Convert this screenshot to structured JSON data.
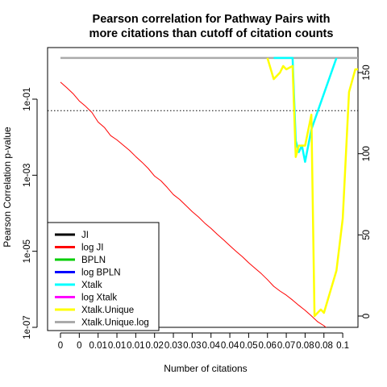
{
  "chart_data": {
    "type": "line",
    "title": [
      "Pearson correlation for Pathway Pairs with",
      "more citations than cutoff of citation counts"
    ],
    "xlabel": "Number of citations",
    "ylabel_left": "Pearson Correlation p-value",
    "y_left_scale": "log",
    "y_left_ticks": [
      "1e-07",
      "1e-05",
      "1e-03",
      "1e-01"
    ],
    "y_right_ticks": [
      "0",
      "50",
      "100",
      "150"
    ],
    "x_tick_labels": [
      "0",
      "0",
      "0.01",
      "0.01",
      "0.01",
      "0.02",
      "0.03",
      "0.03",
      "0.04",
      "0.04",
      "0.05",
      "0.06",
      "0.07",
      "0.08",
      "0.08",
      "0.1"
    ],
    "x_index_range": [
      0,
      50
    ],
    "reference_line_pvalue": 0.05,
    "legend": {
      "placement": "bottom-left",
      "entries": [
        {
          "label": "JI",
          "color": "#000000"
        },
        {
          "label": "log JI",
          "color": "#ff0000"
        },
        {
          "label": "BPLN",
          "color": "#00cd00"
        },
        {
          "label": "log BPLN",
          "color": "#0000ff"
        },
        {
          "label": "Xtalk",
          "color": "#00ffff"
        },
        {
          "label": "log Xtalk",
          "color": "#ff00ff"
        },
        {
          "label": "Xtalk.Unique",
          "color": "#ffff00"
        },
        {
          "label": "Xtalk.Unique.log",
          "color": "#aaaaaa"
        }
      ]
    },
    "series": [
      {
        "name": "log JI",
        "color": "#ff0000",
        "axis": "left",
        "points": [
          [
            0,
            0.28
          ],
          [
            1,
            0.2
          ],
          [
            2,
            0.14
          ],
          [
            3,
            0.09
          ],
          [
            4,
            0.065
          ],
          [
            5,
            0.045
          ],
          [
            6,
            0.025
          ],
          [
            7,
            0.018
          ],
          [
            8,
            0.011
          ],
          [
            9,
            0.0085
          ],
          [
            10,
            0.0062
          ],
          [
            11,
            0.0045
          ],
          [
            12,
            0.0031
          ],
          [
            13,
            0.0022
          ],
          [
            14,
            0.0015
          ],
          [
            15,
            0.00095
          ],
          [
            16,
            0.00072
          ],
          [
            17,
            0.00048
          ],
          [
            18,
            0.00031
          ],
          [
            19,
            0.00023
          ],
          [
            20,
            0.00016
          ],
          [
            21,
            0.00011
          ],
          [
            22,
            8e-05
          ],
          [
            23,
            5.5e-05
          ],
          [
            24,
            4e-05
          ],
          [
            25,
            2.8e-05
          ],
          [
            26,
            2e-05
          ],
          [
            27,
            1.4e-05
          ],
          [
            28,
            1e-05
          ],
          [
            29,
            7.2e-06
          ],
          [
            30,
            5e-06
          ],
          [
            31,
            3.6e-06
          ],
          [
            32,
            2.6e-06
          ],
          [
            33,
            1.8e-06
          ],
          [
            34,
            1.2e-06
          ],
          [
            35,
            9e-07
          ],
          [
            36,
            7e-07
          ],
          [
            37,
            5.2e-07
          ],
          [
            38,
            3.8e-07
          ],
          [
            39,
            2.8e-07
          ],
          [
            40,
            2e-07
          ],
          [
            41,
            1.4e-07
          ],
          [
            42,
            1.1e-07
          ],
          [
            43,
            8.2e-08
          ],
          [
            44,
            6.5e-08
          ],
          [
            45,
            4.8e-08
          ]
        ]
      },
      {
        "name": "Xtalk",
        "color": "#00ffff",
        "axis": "right",
        "points": [
          [
            34,
            159
          ],
          [
            35,
            159
          ],
          [
            36,
            159
          ],
          [
            37,
            159
          ],
          [
            37.5,
            108
          ],
          [
            38,
            101
          ],
          [
            38.5,
            105
          ],
          [
            39,
            95
          ],
          [
            40,
            115
          ],
          [
            44,
            159
          ]
        ]
      },
      {
        "name": "Xtalk.Unique",
        "color": "#ffff00",
        "axis": "right",
        "points": [
          [
            33,
            159
          ],
          [
            34,
            146
          ],
          [
            35,
            150
          ],
          [
            35.5,
            154
          ],
          [
            36,
            152
          ],
          [
            37,
            154
          ],
          [
            37.5,
            98
          ],
          [
            38,
            105
          ],
          [
            39,
            105
          ],
          [
            40,
            124
          ],
          [
            40.5,
            0
          ],
          [
            41.5,
            4
          ],
          [
            42,
            2
          ],
          [
            44,
            28
          ],
          [
            45,
            60
          ],
          [
            46,
            138
          ],
          [
            47,
            152
          ],
          [
            48,
            152
          ]
        ]
      },
      {
        "name": "Xtalk.Unique.log",
        "color": "#aaaaaa",
        "axis": "right",
        "points": [
          [
            0,
            159
          ],
          [
            48,
            159
          ]
        ]
      }
    ]
  }
}
